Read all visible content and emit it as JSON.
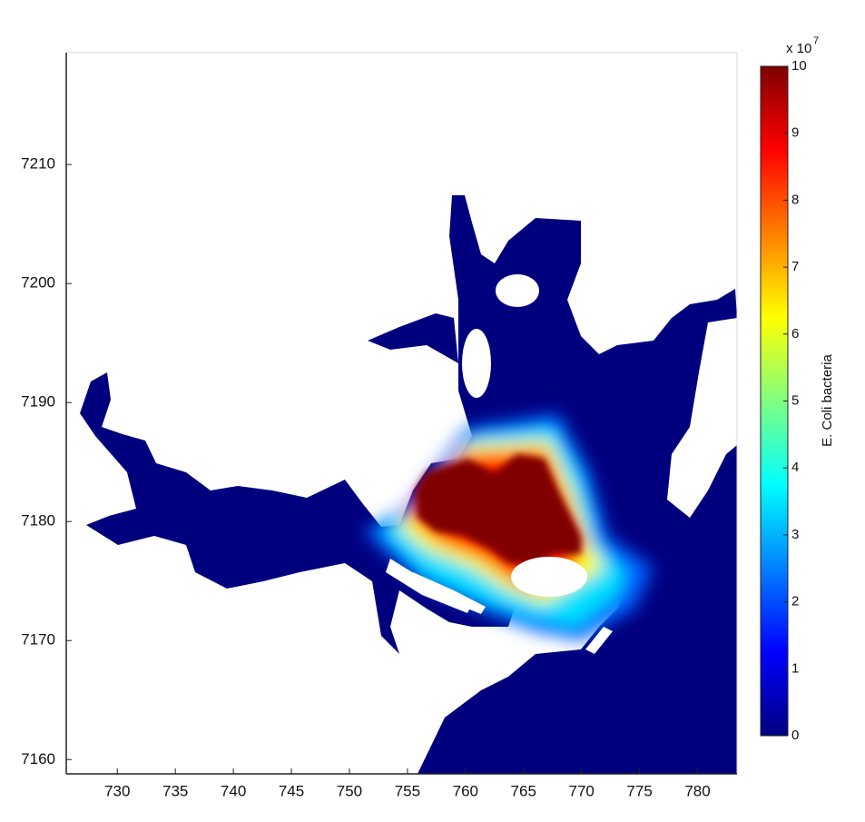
{
  "chart_data": {
    "type": "heatmap",
    "xlim": [
      725.6,
      783.4
    ],
    "xticks": [
      730,
      735,
      740,
      745,
      750,
      755,
      760,
      765,
      770,
      775,
      780
    ],
    "ylim": [
      7158.8,
      7219.4
    ],
    "yticks": [
      7160,
      7170,
      7180,
      7190,
      7200,
      7210
    ],
    "colorbar": {
      "label": "E. Coli bacteria",
      "multiplier": {
        "base": "x 10",
        "exponent": "7"
      },
      "clim": [
        0,
        10
      ],
      "ticks": [
        0,
        1,
        2,
        3,
        4,
        5,
        6,
        7,
        8,
        9,
        10
      ],
      "colormap": [
        "#00007f",
        "#0000ff",
        "#0080ff",
        "#00ffff",
        "#80ff80",
        "#ffff00",
        "#ff8000",
        "#ff0000",
        "#7f0000"
      ]
    }
  }
}
